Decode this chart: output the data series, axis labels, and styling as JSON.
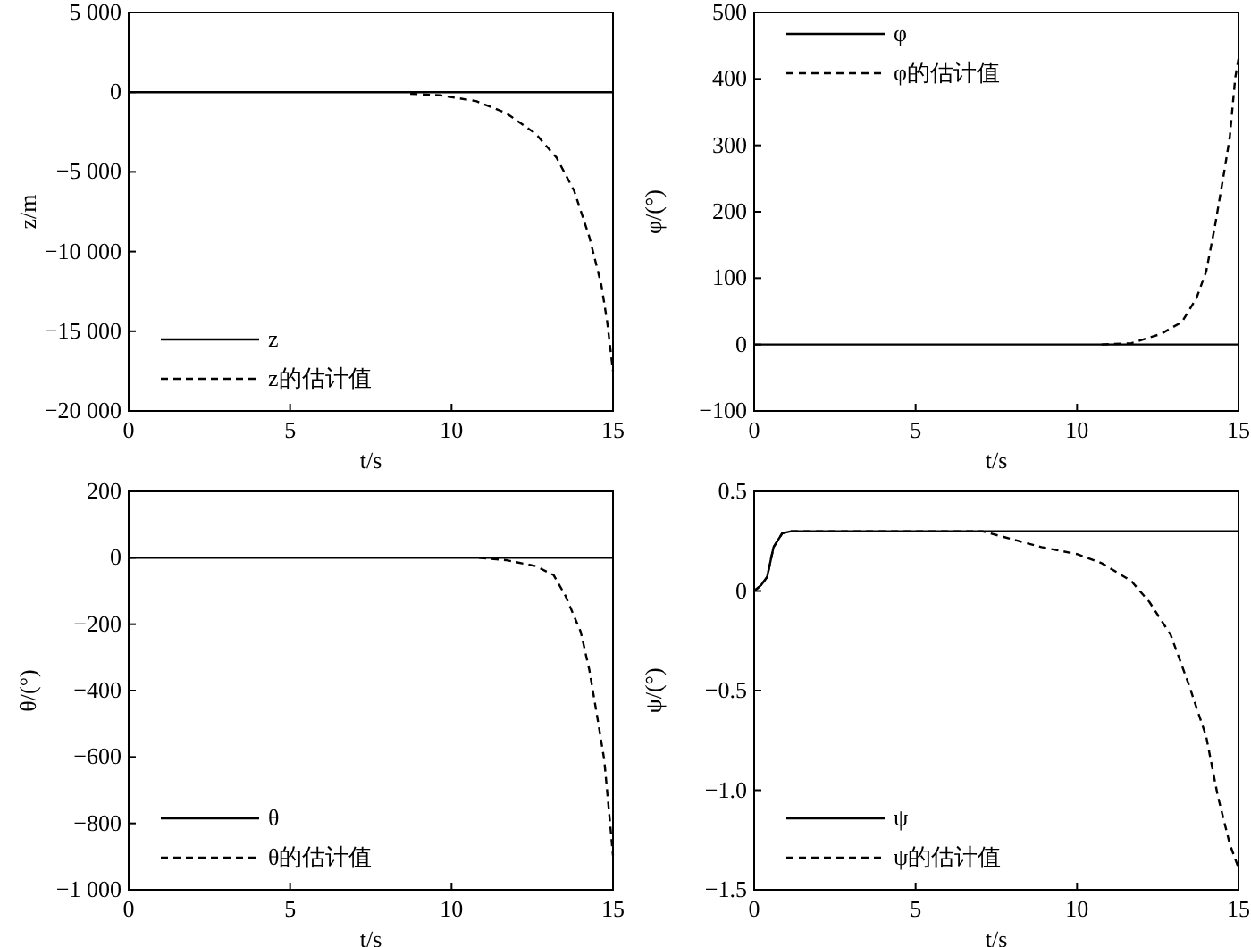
{
  "chart_data": [
    {
      "type": "line",
      "xlabel": "t/s",
      "ylabel": "z/m",
      "xlim": [
        0,
        15
      ],
      "xticks": [
        0,
        5,
        10,
        15
      ],
      "ylim": [
        -20000,
        5000
      ],
      "yticks": [
        {
          "value": -20000,
          "label": "−20 000"
        },
        {
          "value": -15000,
          "label": "−15 000"
        },
        {
          "value": -10000,
          "label": "−10 000"
        },
        {
          "value": -5000,
          "label": "−5 000"
        },
        0,
        {
          "value": 5000,
          "label": "5 000"
        }
      ],
      "legend": "bottom left",
      "grid": false,
      "series": [
        {
          "name": "z",
          "color": "#000000",
          "line_style": "solid",
          "x": [
            0,
            15
          ],
          "values": [
            0,
            0
          ]
        },
        {
          "name": "z的估计值",
          "color": "#000000",
          "line_style": "dashed",
          "x": [
            8.72,
            9.65,
            10.76,
            11.68,
            12.6,
            13.25,
            13.8,
            14.27,
            14.64,
            14.82,
            15
          ],
          "values": [
            -100,
            -200,
            -560,
            -1300,
            -2600,
            -4100,
            -6200,
            -9100,
            -12100,
            -14400,
            -17500
          ]
        }
      ]
    },
    {
      "type": "line",
      "xlabel": "t/s",
      "ylabel": "φ/(°)",
      "xlim": [
        0,
        15
      ],
      "xticks": [
        0,
        5,
        10,
        15
      ],
      "ylim": [
        -100,
        500
      ],
      "yticks": [
        {
          "value": -100,
          "label": "−100"
        },
        0,
        100,
        200,
        300,
        400,
        500
      ],
      "legend": "top left",
      "grid": false,
      "series": [
        {
          "name": "φ",
          "color": "#000000",
          "line_style": "solid",
          "x": [
            0,
            15
          ],
          "values": [
            0,
            0
          ]
        },
        {
          "name": "φ的估计值",
          "color": "#000000",
          "line_style": "dashed",
          "x": [
            10.76,
            11.68,
            12.6,
            13.25,
            13.7,
            14.0,
            14.27,
            14.55,
            14.73,
            14.9,
            15
          ],
          "values": [
            0,
            2,
            16,
            34,
            70,
            110,
            178,
            258,
            312,
            402,
            430
          ]
        }
      ]
    },
    {
      "type": "line",
      "xlabel": "t/s",
      "ylabel": "θ/(°)",
      "xlim": [
        0,
        15
      ],
      "xticks": [
        0,
        5,
        10,
        15
      ],
      "ylim": [
        -1000,
        200
      ],
      "yticks": [
        {
          "value": -1000,
          "label": "−1 000"
        },
        {
          "value": -800,
          "label": "−800"
        },
        {
          "value": -600,
          "label": "−600"
        },
        {
          "value": -400,
          "label": "−400"
        },
        {
          "value": -200,
          "label": "−200"
        },
        0,
        200
      ],
      "legend": "bottom left",
      "grid": false,
      "series": [
        {
          "name": "θ",
          "color": "#000000",
          "line_style": "solid",
          "x": [
            0,
            15
          ],
          "values": [
            0,
            0
          ]
        },
        {
          "name": "θ的估计值",
          "color": "#000000",
          "line_style": "dashed",
          "x": [
            10.85,
            11.68,
            12.6,
            13.16,
            13.53,
            14.0,
            14.27,
            14.55,
            14.73,
            14.9,
            15
          ],
          "values": [
            0,
            -7,
            -25,
            -52,
            -115,
            -223,
            -339,
            -501,
            -609,
            -789,
            -897
          ]
        }
      ]
    },
    {
      "type": "line",
      "xlabel": "t/s",
      "ylabel": "ψ/(°)",
      "xlim": [
        0,
        15
      ],
      "xticks": [
        0,
        5,
        10,
        15
      ],
      "ylim": [
        -1.5,
        0.5
      ],
      "yticks": [
        {
          "value": -1.5,
          "label": "−1.5"
        },
        {
          "value": -1,
          "label": "−1.0"
        },
        {
          "value": -0.5,
          "label": "−0.5"
        },
        0,
        0.5
      ],
      "legend": "bottom left",
      "grid": false,
      "series": [
        {
          "name": "ψ",
          "color": "#000000",
          "line_style": "solid",
          "x": [
            0,
            0.22,
            0.4,
            0.6,
            0.87,
            1.15,
            15
          ],
          "values": [
            0,
            0.03,
            0.07,
            0.22,
            0.29,
            0.3,
            0.3
          ]
        },
        {
          "name": "ψ的估计值",
          "color": "#000000",
          "line_style": "dashed",
          "x": [
            0,
            0.22,
            0.4,
            0.6,
            0.87,
            1.15,
            7.06,
            7.99,
            8.9,
            10.0,
            10.76,
            11.68,
            12.24,
            12.9,
            13.44,
            14.0,
            14.36,
            14.73,
            15
          ],
          "values": [
            0,
            0.03,
            0.07,
            0.22,
            0.29,
            0.3,
            0.3,
            0.26,
            0.22,
            0.185,
            0.14,
            0.05,
            -0.055,
            -0.22,
            -0.46,
            -0.73,
            -1.03,
            -1.27,
            -1.39
          ]
        }
      ]
    }
  ]
}
